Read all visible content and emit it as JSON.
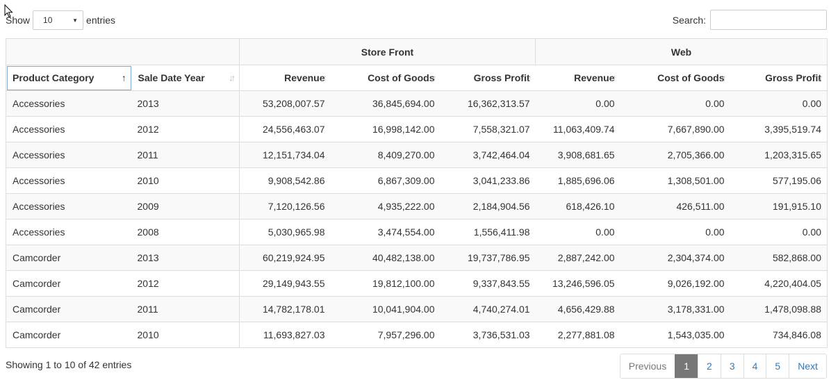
{
  "controls": {
    "show_label": "Show",
    "entries_label": "entries",
    "page_length": "10",
    "search_label": "Search:",
    "search_value": ""
  },
  "table": {
    "groups": {
      "store": "Store Front",
      "web": "Web"
    },
    "columns": [
      "Product Category",
      "Sale Date Year",
      "Revenue",
      "Cost of Goods",
      "Gross Profit",
      "Revenue",
      "Cost of Goods",
      "Gross Profit"
    ],
    "rows": [
      [
        "Accessories",
        "2013",
        "53,208,007.57",
        "36,845,694.00",
        "16,362,313.57",
        "0.00",
        "0.00",
        "0.00"
      ],
      [
        "Accessories",
        "2012",
        "24,556,463.07",
        "16,998,142.00",
        "7,558,321.07",
        "11,063,409.74",
        "7,667,890.00",
        "3,395,519.74"
      ],
      [
        "Accessories",
        "2011",
        "12,151,734.04",
        "8,409,270.00",
        "3,742,464.04",
        "3,908,681.65",
        "2,705,366.00",
        "1,203,315.65"
      ],
      [
        "Accessories",
        "2010",
        "9,908,542.86",
        "6,867,309.00",
        "3,041,233.86",
        "1,885,696.06",
        "1,308,501.00",
        "577,195.06"
      ],
      [
        "Accessories",
        "2009",
        "7,120,126.56",
        "4,935,222.00",
        "2,184,904.56",
        "618,426.10",
        "426,511.00",
        "191,915.10"
      ],
      [
        "Accessories",
        "2008",
        "5,030,965.98",
        "3,474,554.00",
        "1,556,411.98",
        "0.00",
        "0.00",
        "0.00"
      ],
      [
        "Camcorder",
        "2013",
        "60,219,924.95",
        "40,482,138.00",
        "19,737,786.95",
        "2,887,242.00",
        "2,304,374.00",
        "582,868.00"
      ],
      [
        "Camcorder",
        "2012",
        "29,149,943.55",
        "19,812,100.00",
        "9,337,843.55",
        "13,246,596.05",
        "9,026,192.00",
        "4,220,404.05"
      ],
      [
        "Camcorder",
        "2011",
        "14,782,178.01",
        "10,041,904.00",
        "4,740,274.01",
        "4,656,429.88",
        "3,178,331.00",
        "1,478,098.88"
      ],
      [
        "Camcorder",
        "2010",
        "11,693,827.03",
        "7,957,296.00",
        "3,736,531.03",
        "2,277,881.08",
        "1,543,035.00",
        "734,846.08"
      ]
    ]
  },
  "footer": {
    "info": "Showing 1 to 10 of 42 entries",
    "previous": "Previous",
    "pages": [
      "1",
      "2",
      "3",
      "4",
      "5"
    ],
    "current_page": "1",
    "next": "Next"
  },
  "icons": {
    "sort_asc": "sort-ascending-icon",
    "sort_both": "sort-both-icon",
    "dropdown": "chevron-down-icon",
    "cursor": "mouse-pointer-icon"
  }
}
